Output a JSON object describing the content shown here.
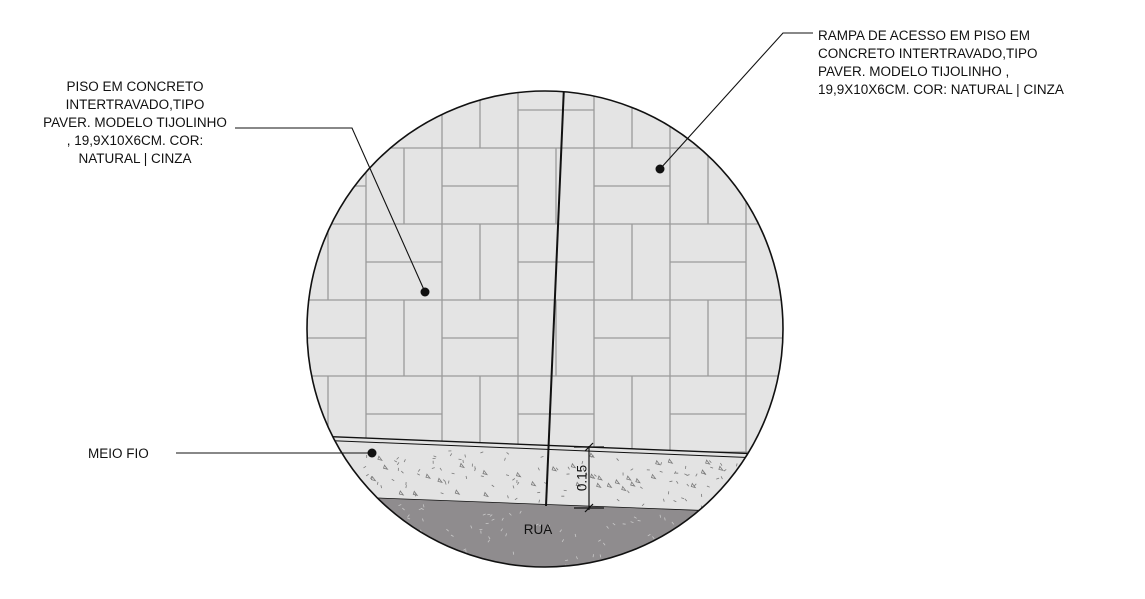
{
  "labels": {
    "piso": [
      "PISO EM CONCRETO",
      "INTERTRAVADO,TIPO",
      "PAVER. MODELO TIJOLINHO",
      ", 19,9X10X6CM. COR:",
      "NATURAL | CINZA"
    ],
    "rampa": [
      "RAMPA DE ACESSO EM PISO EM",
      "CONCRETO INTERTRAVADO,TIPO",
      "PAVER. MODELO TIJOLINHO ,",
      "19,9X10X6CM. COR: NATURAL | CINZA"
    ],
    "meio_fio": "MEIO FIO",
    "rua": "RUA",
    "dimension": "0.15"
  },
  "colors": {
    "paver_fill": "#e4e4e4",
    "paver_joint": "#9a9a9a",
    "curb_fill": "#e3e3e3",
    "street_fill": "#8f8c8e",
    "outline": "#111111"
  }
}
